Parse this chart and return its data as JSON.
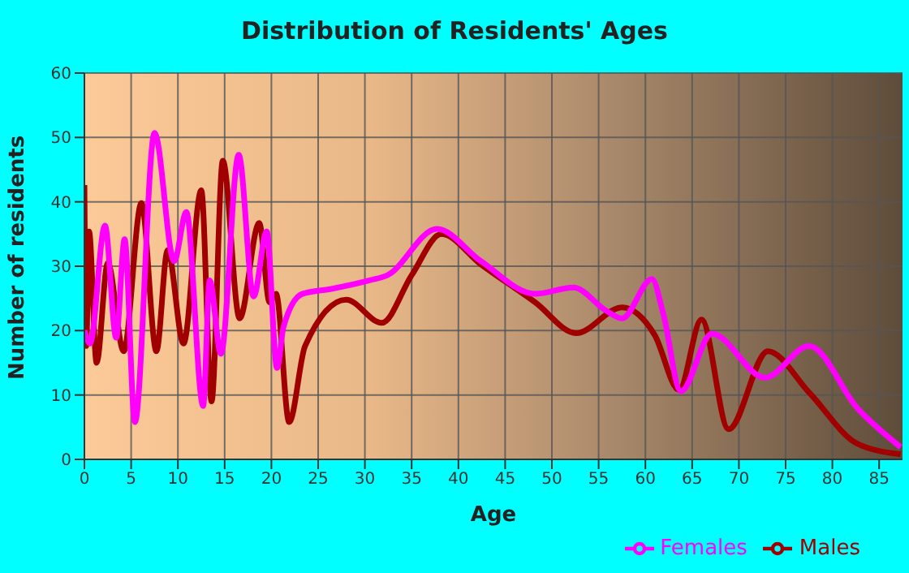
{
  "chart_data": {
    "type": "line",
    "title": "Distribution of Residents' Ages",
    "xlabel": "Age",
    "ylabel": "Number of residents",
    "xlim": [
      0,
      87.5
    ],
    "xticks": [
      0,
      5,
      10,
      15,
      20,
      25,
      30,
      35,
      40,
      45,
      50,
      55,
      60,
      65,
      70,
      75,
      80,
      85
    ],
    "ylim": [
      0,
      60
    ],
    "yticks": [
      0,
      10,
      20,
      30,
      40,
      50,
      60
    ],
    "grid": true,
    "legend": "bottom right",
    "marker": "none",
    "line_style": "solid",
    "series": [
      {
        "name": "Males",
        "color": "#a00000",
        "x": [
          0,
          0.2,
          0.5,
          1.3,
          2.5,
          4.2,
          6.1,
          7.7,
          8.9,
          10.6,
          12.5,
          13.6,
          14.8,
          16.6,
          18.7,
          19.8,
          20.5,
          21.9,
          23.6,
          28,
          31.8,
          35,
          38.2,
          42.4,
          48.2,
          52.6,
          57.5,
          61,
          63.6,
          66,
          68.9,
          73.1,
          77.5,
          82.7,
          87.3
        ],
        "values": [
          42.6,
          17.6,
          35.4,
          15,
          30.5,
          16.8,
          39.8,
          16.8,
          32.5,
          18,
          41.8,
          9,
          46.4,
          21.9,
          36.7,
          24.4,
          25.7,
          5.8,
          17.6,
          24.8,
          21.2,
          28.6,
          35,
          30.3,
          24.4,
          19.6,
          23.6,
          19.3,
          10.8,
          21.7,
          4.7,
          16.8,
          10.4,
          2.4,
          0.8
        ]
      },
      {
        "name": "Females",
        "color": "#ff00ff",
        "x": [
          0,
          0.6,
          2.2,
          3.4,
          4.3,
          5.4,
          7.5,
          9.6,
          10.9,
          12.7,
          13.4,
          14.6,
          16.5,
          18.1,
          19.5,
          20.6,
          21.3,
          23.3,
          26.5,
          30.5,
          32.4,
          37.7,
          42.4,
          48.2,
          52.3,
          55.8,
          57.5,
          60.7,
          61.9,
          63.8,
          67.1,
          72.8,
          77.5,
          82.7,
          87.3
        ],
        "values": [
          20,
          18,
          36.3,
          18.9,
          34.2,
          5.8,
          50.7,
          30.8,
          38.4,
          8.3,
          27.8,
          16.4,
          47.3,
          25.3,
          35.4,
          14.2,
          20.6,
          25.7,
          26.5,
          27.8,
          28.6,
          35.8,
          30.8,
          25.7,
          26.7,
          23.1,
          21.9,
          28,
          22.7,
          10.6,
          19.5,
          12.7,
          17.6,
          7.9,
          1.9
        ]
      }
    ]
  }
}
